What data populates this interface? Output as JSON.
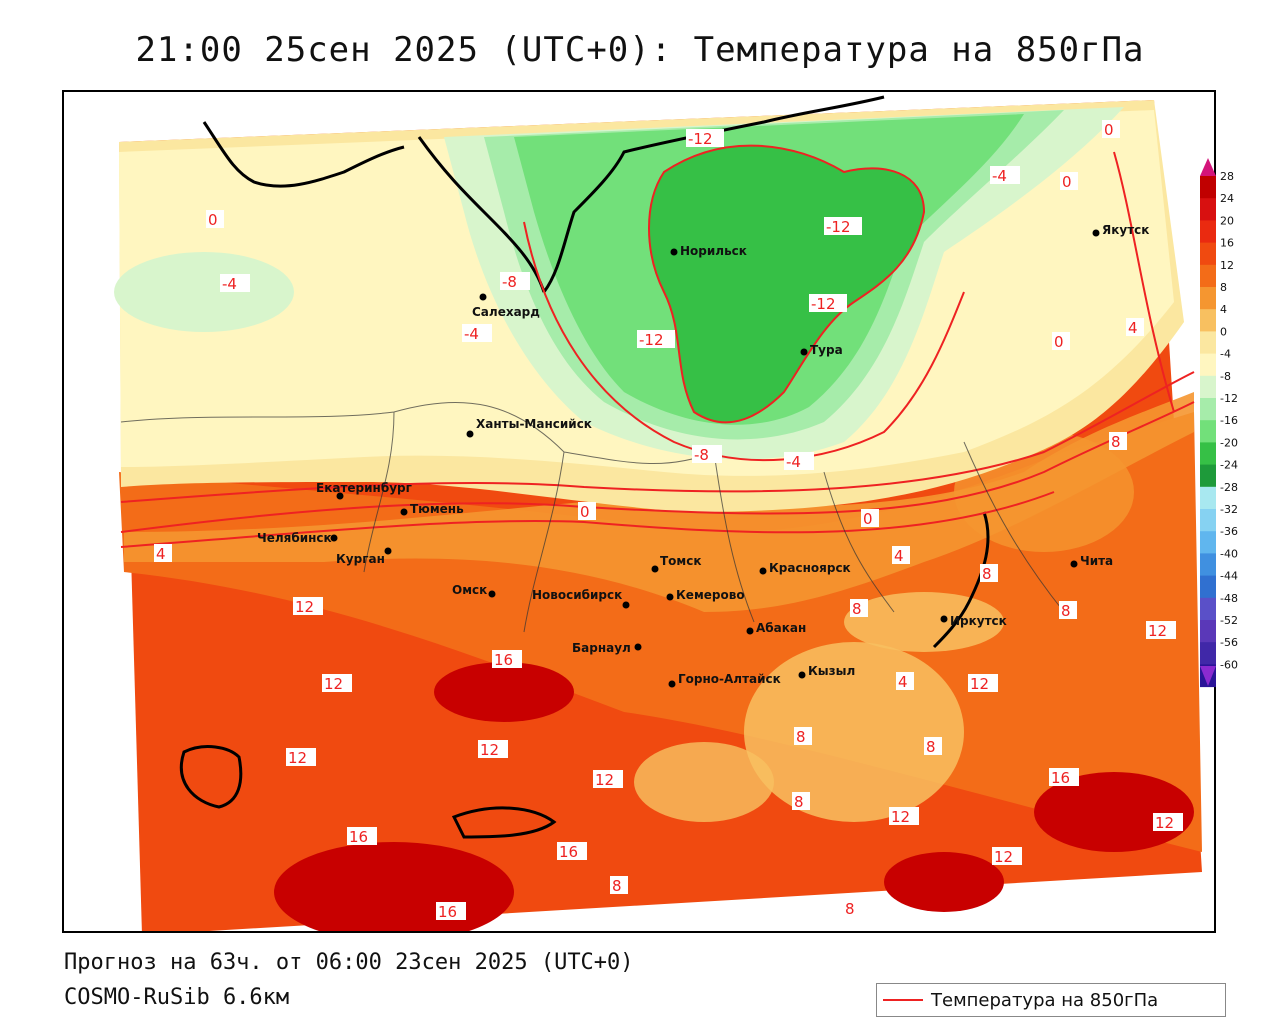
{
  "title": "21:00 25сен 2025 (UTC+0): Температура на 850гПа",
  "footer": {
    "forecast": "Прогноз на 63ч. от 06:00 23сен 2025 (UTC+0)",
    "model": "COSMO-RuSib 6.6км"
  },
  "legend": {
    "label": "Температура на 850гПа",
    "line_color": "#e22222"
  },
  "colorbar": {
    "levels": [
      "28",
      "24",
      "20",
      "16",
      "12",
      "8",
      "4",
      "0",
      "-4",
      "-8",
      "-12",
      "-16",
      "-20",
      "-24",
      "-28",
      "-32",
      "-36",
      "-40",
      "-44",
      "-48",
      "-52",
      "-56",
      "-60"
    ],
    "colors": [
      "#c00000",
      "#d81010",
      "#ea2a10",
      "#f04a10",
      "#f36c18",
      "#f59630",
      "#f8c060",
      "#fbe7a0",
      "#fff6c0",
      "#d8f5cc",
      "#a6ecaa",
      "#72e07a",
      "#36c046",
      "#1e9a3a",
      "#a8e8f0",
      "#86d2f2",
      "#60b6ee",
      "#4090e0",
      "#3070d0",
      "#5a50c8",
      "#5a38b8",
      "#4028a8",
      "#2a1498"
    ],
    "arrow_top": "#d4147a",
    "arrow_bottom": "#8a2ad0"
  },
  "cities": [
    {
      "name": "Норильск"
    },
    {
      "name": "Салехард"
    },
    {
      "name": "Тура"
    },
    {
      "name": "Якутск"
    },
    {
      "name": "Ханты-Мансийск"
    },
    {
      "name": "Екатеринбург"
    },
    {
      "name": "Тюмень"
    },
    {
      "name": "Челябинск"
    },
    {
      "name": "Курган"
    },
    {
      "name": "Омск"
    },
    {
      "name": "Новосибирск"
    },
    {
      "name": "Томск"
    },
    {
      "name": "Кемерово"
    },
    {
      "name": "Красноярск"
    },
    {
      "name": "Барнаул"
    },
    {
      "name": "Абакан"
    },
    {
      "name": "Горно-Алтайск"
    },
    {
      "name": "Кызыл"
    },
    {
      "name": "Иркутск"
    },
    {
      "name": "Чита"
    }
  ],
  "isotherm_labels": [
    "-12",
    "-12",
    "-12",
    "-12",
    "-8",
    "-8",
    "-4",
    "-4",
    "-4",
    "-4",
    "0",
    "0",
    "0",
    "0",
    "0",
    "0",
    "4",
    "4",
    "4",
    "4",
    "8",
    "8",
    "8",
    "8",
    "8",
    "8",
    "8",
    "12",
    "12",
    "12",
    "12",
    "12",
    "12",
    "12",
    "12",
    "16",
    "16",
    "16",
    "16",
    "16",
    "12",
    "12",
    "8",
    "8"
  ]
}
